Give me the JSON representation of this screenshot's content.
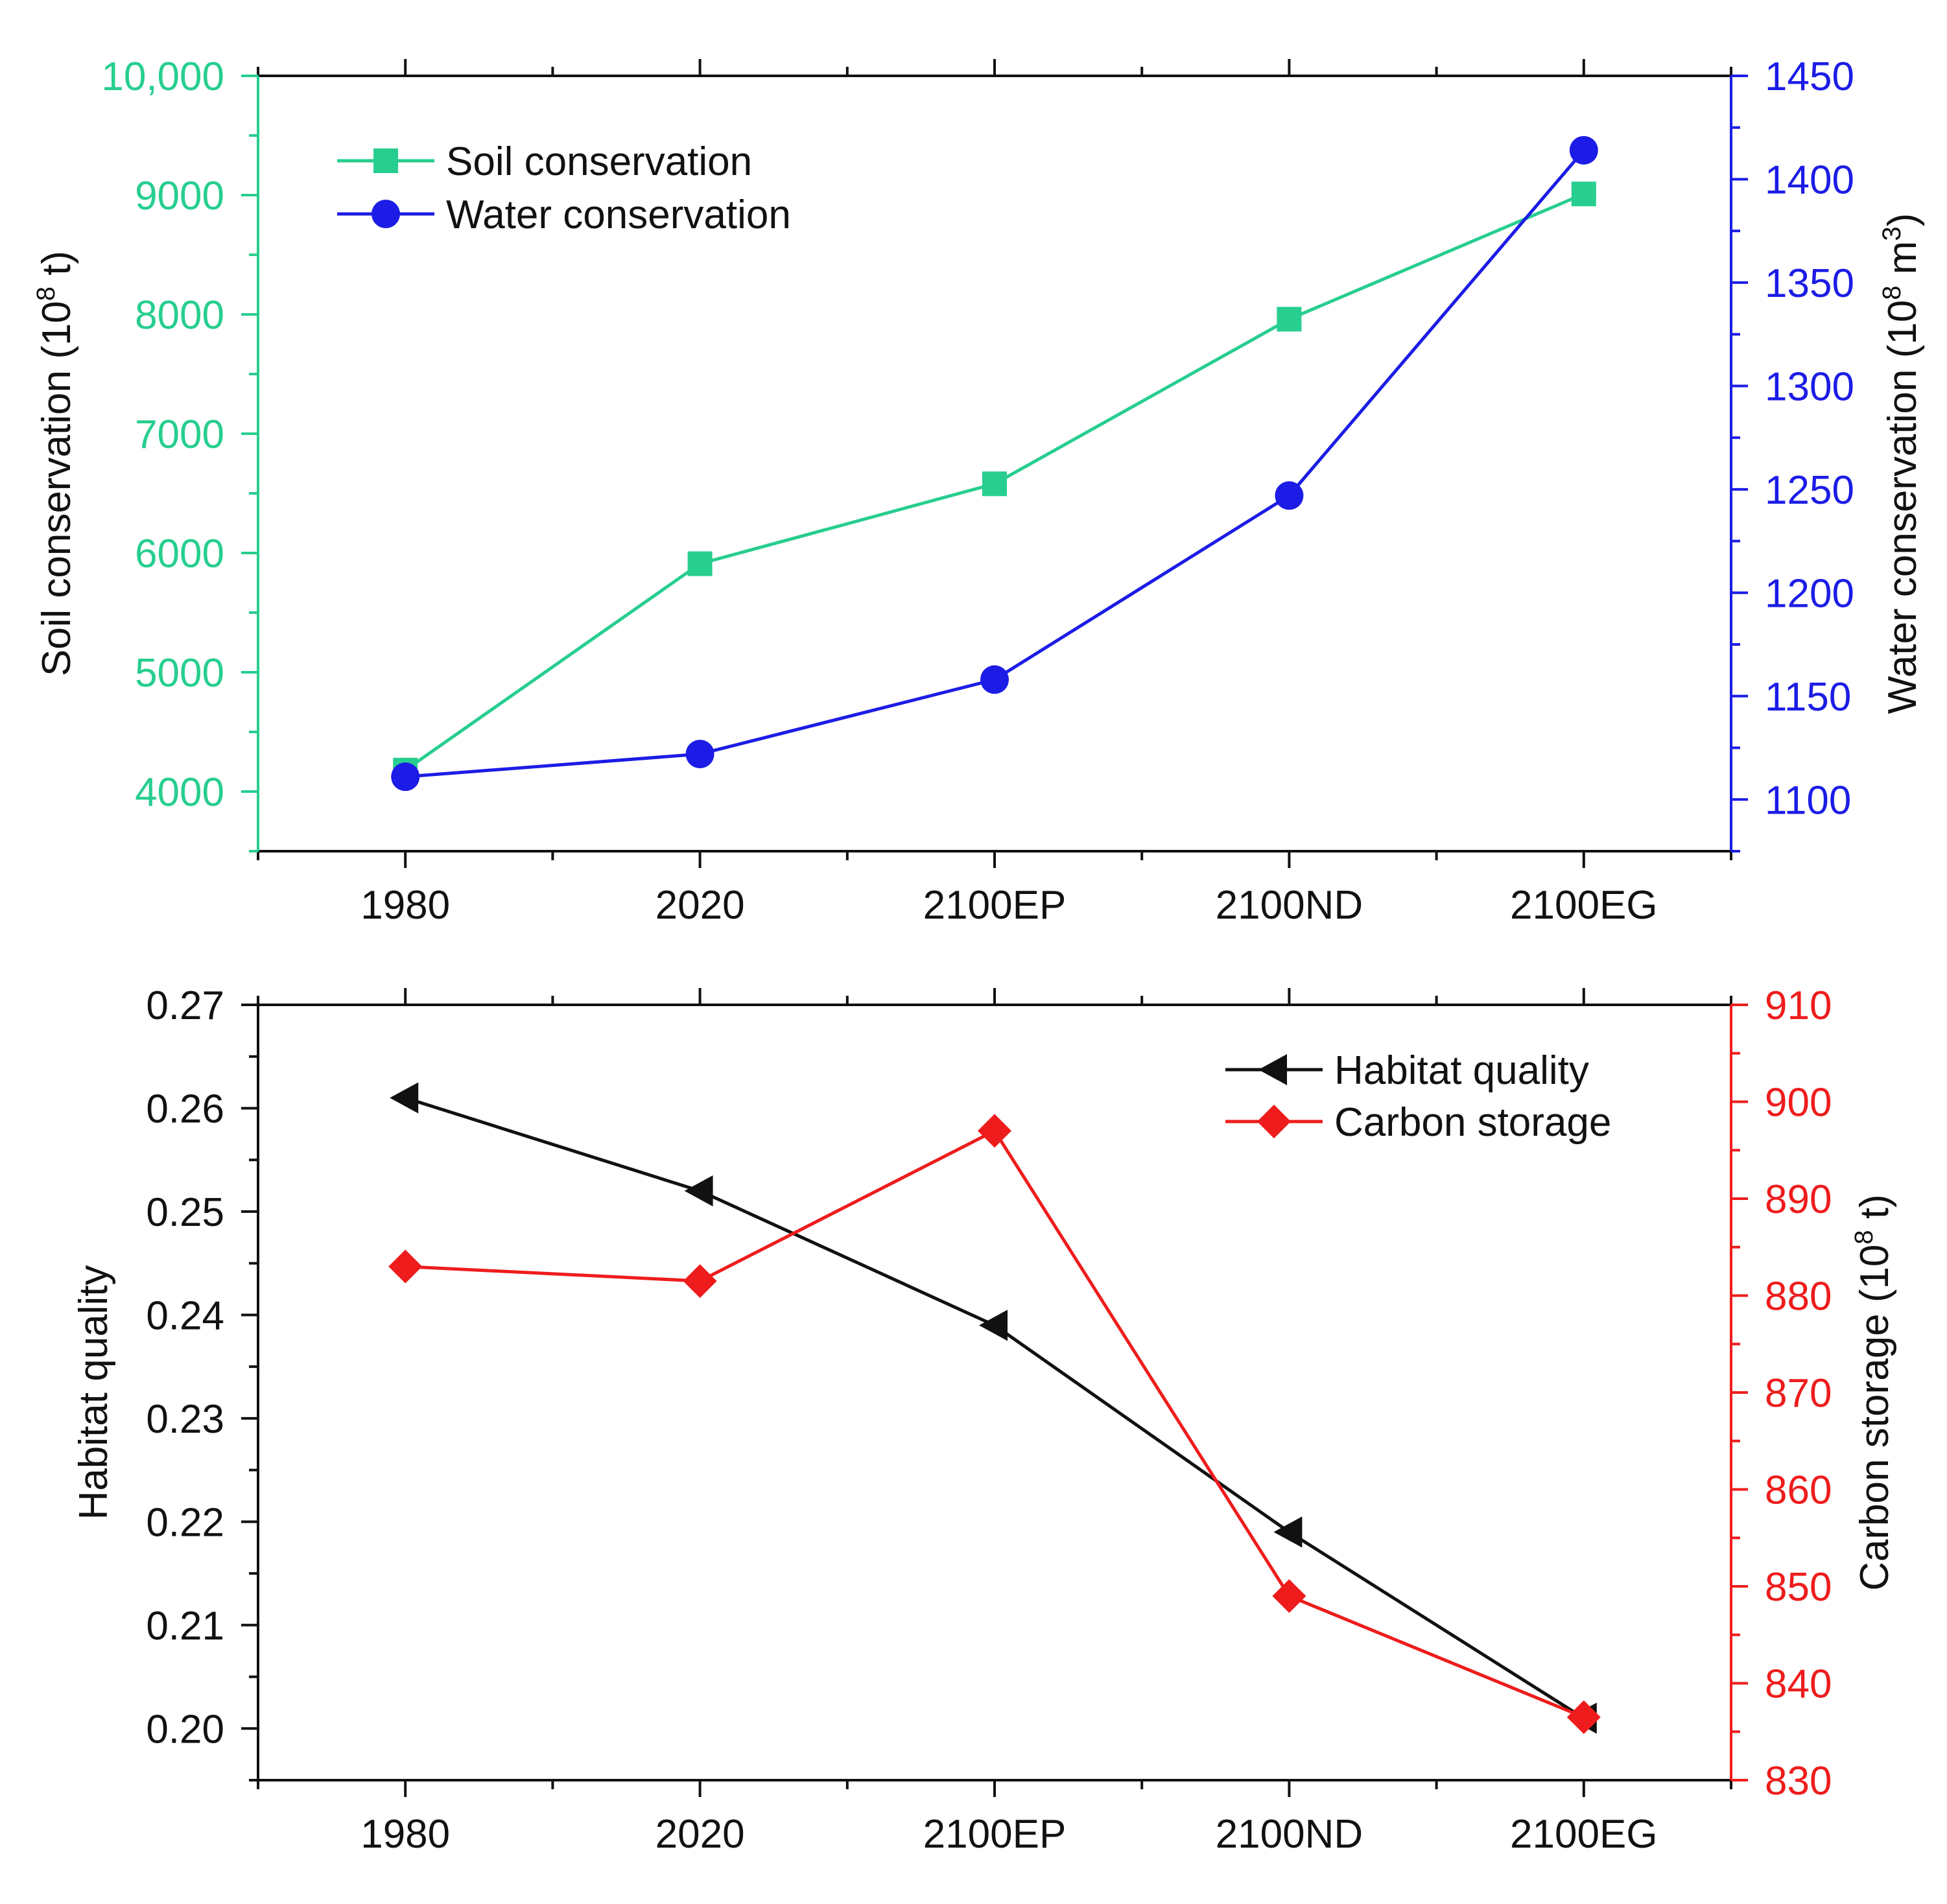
{
  "chart_data": [
    {
      "type": "line",
      "title": "",
      "categories": [
        "1980",
        "2020",
        "2100EP",
        "2100ND",
        "2100EG"
      ],
      "xlabel": "",
      "left_axis": {
        "label": "Soil conservation (10",
        "label_sup": "8",
        "label_tail": " t)",
        "ylim": [
          3500,
          10000
        ],
        "ticks": [
          4000,
          5000,
          6000,
          7000,
          8000,
          9000,
          10000
        ],
        "tick_labels": [
          "4000",
          "5000",
          "6000",
          "7000",
          "8000",
          "9000",
          "10,000"
        ],
        "color": "#27CE8F"
      },
      "right_axis": {
        "label": "Water conservation (10",
        "label_sup": "8",
        "label_mid": " m",
        "label_sup2": "3",
        "label_tail": ")",
        "ylim": [
          1075,
          1450
        ],
        "ticks": [
          1100,
          1150,
          1200,
          1250,
          1300,
          1350,
          1400,
          1450
        ],
        "tick_labels": [
          "1100",
          "1150",
          "1200",
          "1250",
          "1300",
          "1350",
          "1400",
          "1450"
        ],
        "color": "#1C1CE6"
      },
      "series": [
        {
          "name": "Soil conservation",
          "axis": "left",
          "marker": "square",
          "color": "#27CE8F",
          "values": [
            4180,
            5910,
            6580,
            7960,
            9010
          ]
        },
        {
          "name": "Water conservation",
          "axis": "right",
          "marker": "circle",
          "color": "#1C1CE6",
          "values": [
            1111,
            1122,
            1158,
            1247,
            1414
          ]
        }
      ],
      "legend_position": "top-left"
    },
    {
      "type": "line",
      "title": "",
      "categories": [
        "1980",
        "2020",
        "2100EP",
        "2100ND",
        "2100EG"
      ],
      "xlabel": "",
      "left_axis": {
        "label": "Habitat quality",
        "ylim": [
          0.195,
          0.27
        ],
        "ticks": [
          0.2,
          0.21,
          0.22,
          0.23,
          0.24,
          0.25,
          0.26,
          0.27
        ],
        "tick_labels": [
          "0.20",
          "0.21",
          "0.22",
          "0.23",
          "0.24",
          "0.25",
          "0.26",
          "0.27"
        ],
        "color": "#111111"
      },
      "right_axis": {
        "label": "Carbon storage (10",
        "label_sup": "8",
        "label_tail": " t)",
        "ylim": [
          830,
          910
        ],
        "ticks": [
          830,
          840,
          850,
          860,
          870,
          880,
          890,
          900,
          910
        ],
        "tick_labels": [
          "830",
          "840",
          "850",
          "860",
          "870",
          "880",
          "890",
          "900",
          "910"
        ],
        "color": "#EE1C1C"
      },
      "series": [
        {
          "name": "Habitat quality",
          "axis": "left",
          "marker": "triangle-left",
          "color": "#111111",
          "values": [
            0.261,
            0.252,
            0.239,
            0.219,
            0.201
          ]
        },
        {
          "name": "Carbon storage",
          "axis": "right",
          "marker": "diamond",
          "color": "#EE1C1C",
          "values": [
            883,
            881.5,
            897,
            849,
            836.5
          ]
        }
      ],
      "legend_position": "top-right"
    }
  ]
}
